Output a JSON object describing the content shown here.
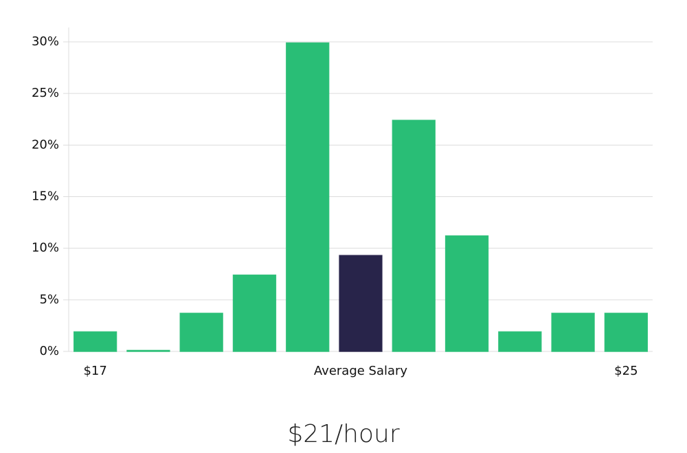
{
  "chart_data": {
    "type": "bar",
    "title": "$21/hour",
    "categories": [
      "$17",
      null,
      null,
      null,
      null,
      "Average Salary",
      null,
      null,
      null,
      null,
      "$25"
    ],
    "values": [
      1.9,
      0.1,
      3.7,
      7.4,
      29.9,
      9.3,
      22.4,
      11.2,
      1.9,
      3.7,
      3.7
    ],
    "colors": [
      "#29be76",
      "#29be76",
      "#29be76",
      "#29be76",
      "#29be76",
      "#28244a",
      "#29be76",
      "#29be76",
      "#29be76",
      "#29be76",
      "#29be76"
    ],
    "ylim": [
      0,
      30
    ],
    "yticks": [
      {
        "value": 0,
        "label": "0%"
      },
      {
        "value": 5,
        "label": "5%"
      },
      {
        "value": 10,
        "label": "10%"
      },
      {
        "value": 15,
        "label": "15%"
      },
      {
        "value": 20,
        "label": "20%"
      },
      {
        "value": 25,
        "label": "25%"
      },
      {
        "value": 30,
        "label": "30%"
      }
    ],
    "grid": true
  }
}
